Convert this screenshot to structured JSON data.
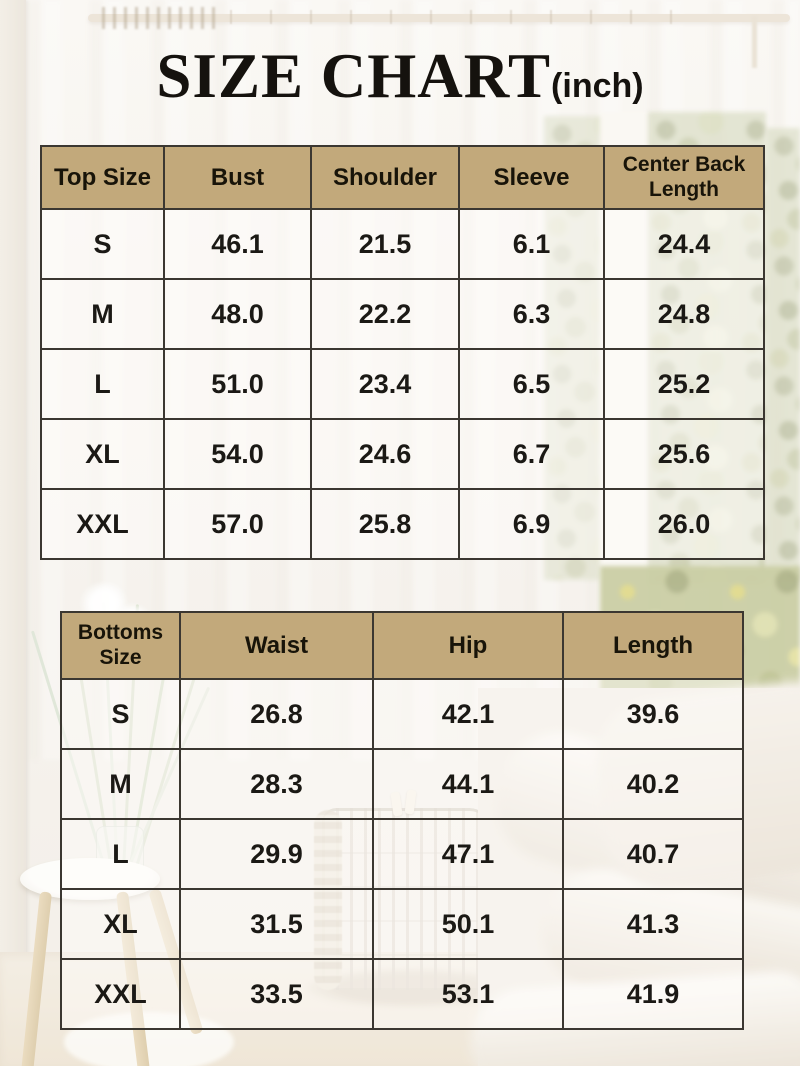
{
  "page": {
    "title": "SIZE CHART",
    "unit_label": "(inch)"
  },
  "colors": {
    "header_fill": "#c2a97b",
    "table_border": "#3b3731",
    "text": "#1b1915"
  },
  "chart_data": [
    {
      "type": "table",
      "columns": [
        "Top Size",
        "Bust",
        "Shoulder",
        "Sleeve",
        "Center Back Length"
      ],
      "rows": [
        [
          "S",
          "46.1",
          "21.5",
          "6.1",
          "24.4"
        ],
        [
          "M",
          "48.0",
          "22.2",
          "6.3",
          "24.8"
        ],
        [
          "L",
          "51.0",
          "23.4",
          "6.5",
          "25.2"
        ],
        [
          "XL",
          "54.0",
          "24.6",
          "6.7",
          "25.6"
        ],
        [
          "XXL",
          "57.0",
          "25.8",
          "6.9",
          "26.0"
        ]
      ]
    },
    {
      "type": "table",
      "columns": [
        "Bottoms Size",
        "Waist",
        "Hip",
        "Length"
      ],
      "rows": [
        [
          "S",
          "26.8",
          "42.1",
          "39.6"
        ],
        [
          "M",
          "28.3",
          "44.1",
          "40.2"
        ],
        [
          "L",
          "29.9",
          "47.1",
          "40.7"
        ],
        [
          "XL",
          "31.5",
          "50.1",
          "41.3"
        ],
        [
          "XXL",
          "33.5",
          "53.1",
          "41.9"
        ]
      ]
    }
  ]
}
